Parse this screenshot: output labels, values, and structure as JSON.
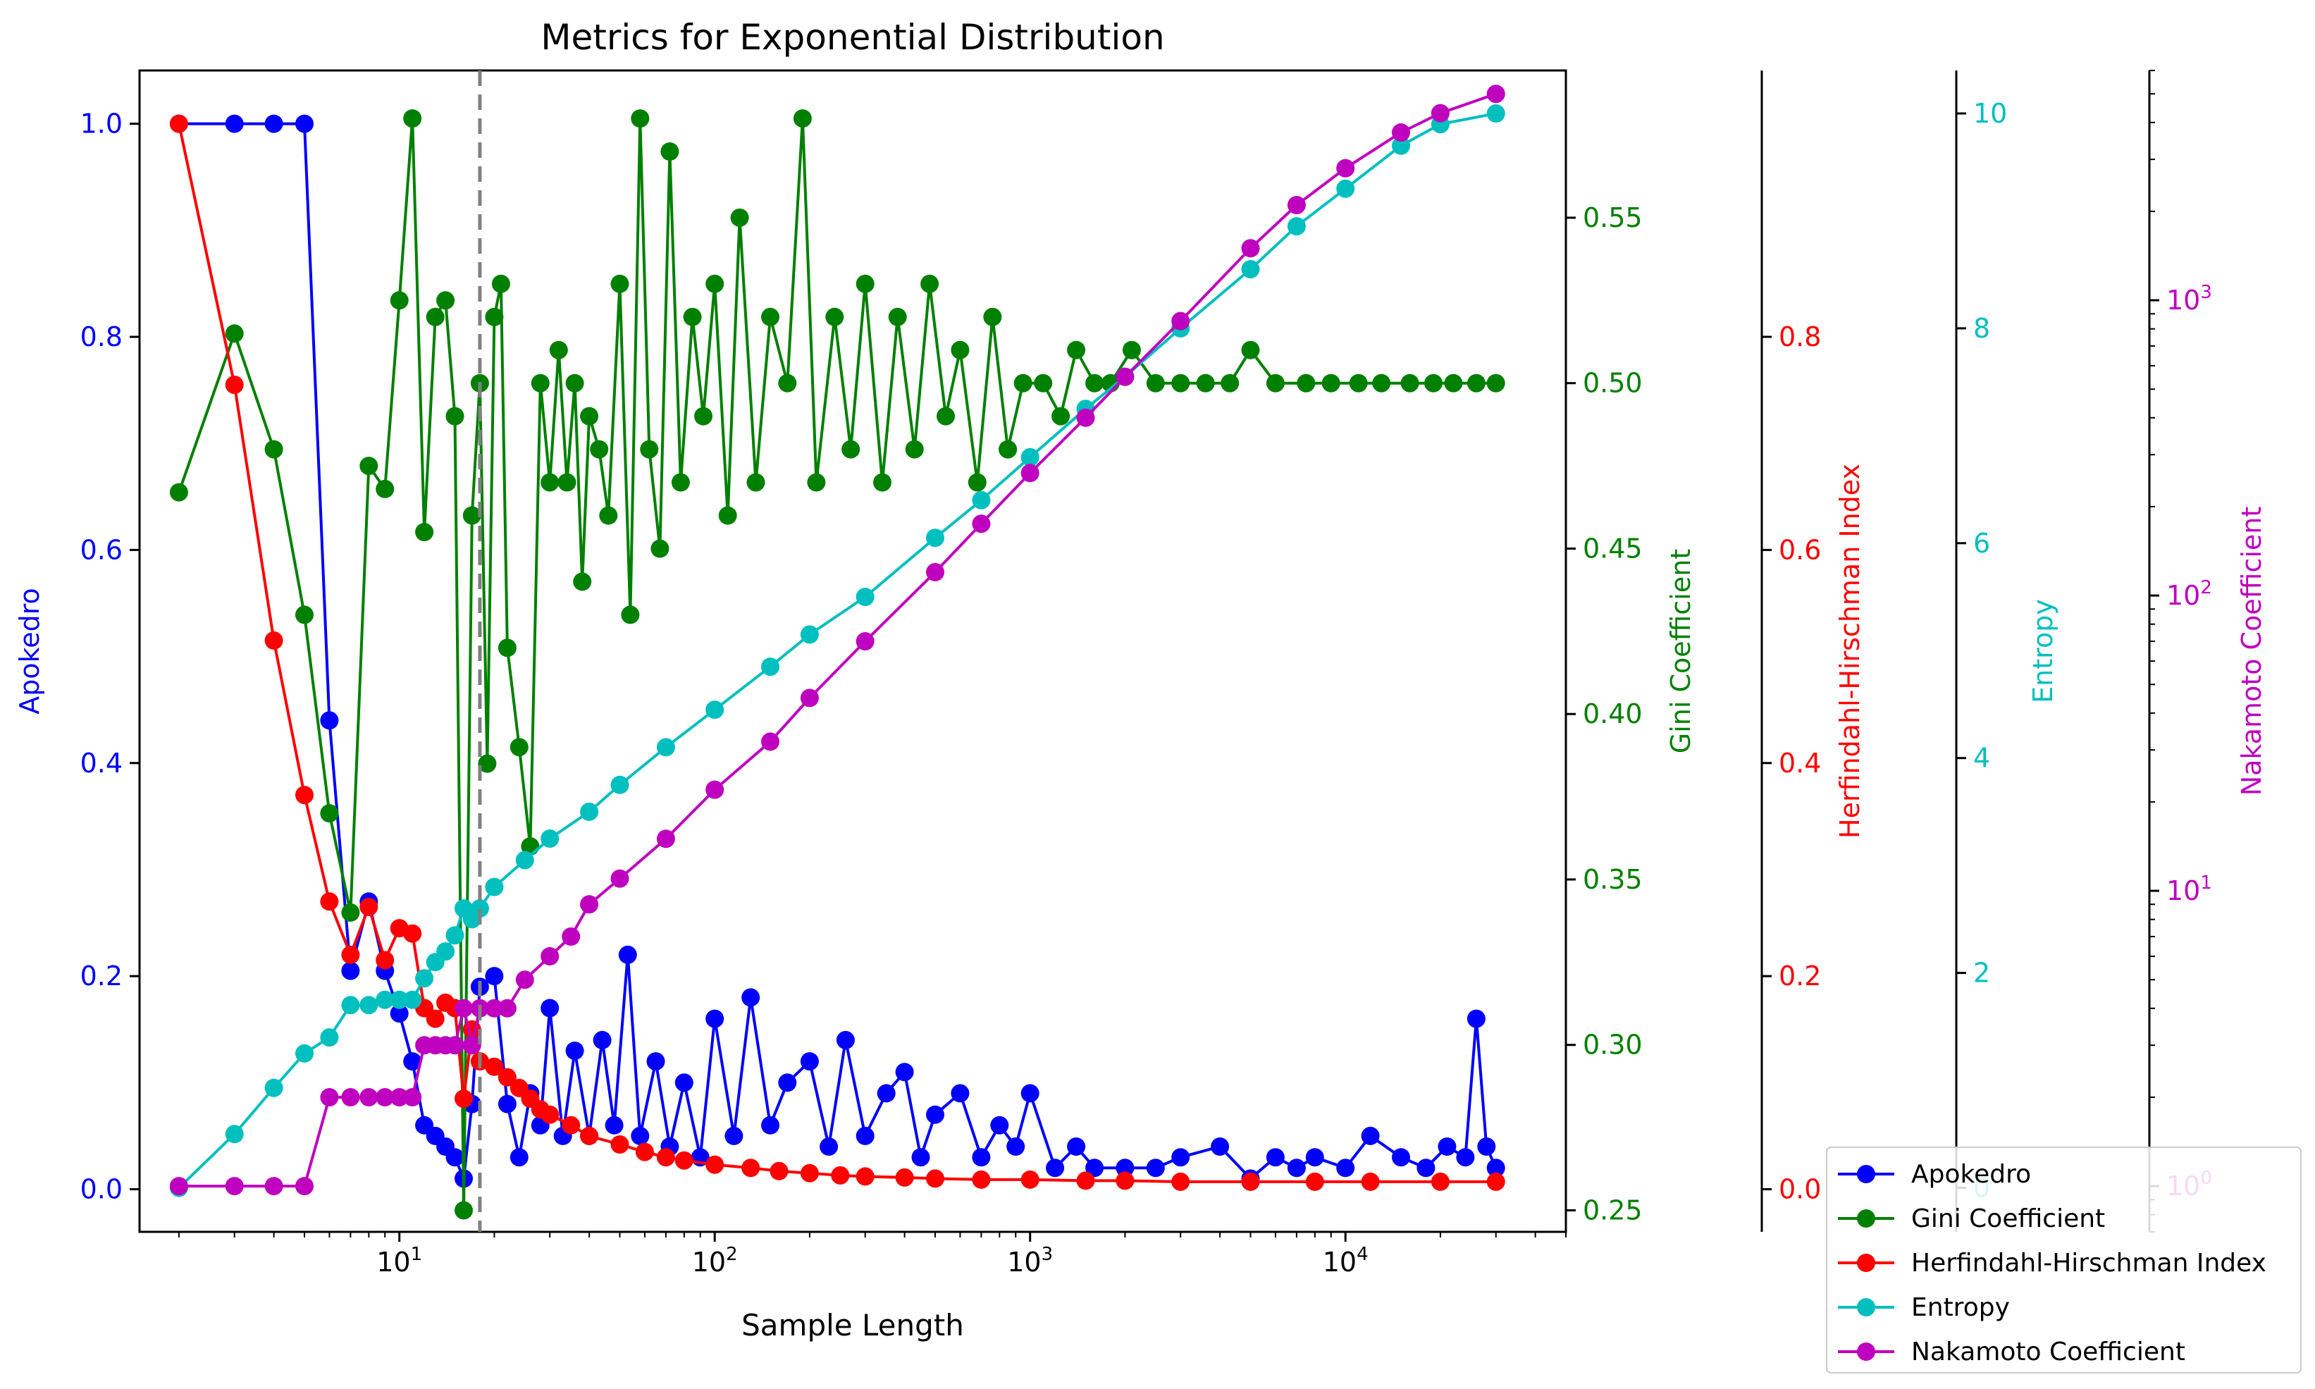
{
  "chart_data": {
    "type": "line",
    "title": "Metrics for Exponential Distribution",
    "xlabel": "Sample Length",
    "x_scale": "log",
    "xlim": [
      1.5,
      50000
    ],
    "x_ticks": [
      {
        "value": 10,
        "base": "10",
        "exp": "1"
      },
      {
        "value": 100,
        "base": "10",
        "exp": "2"
      },
      {
        "value": 1000,
        "base": "10",
        "exp": "3"
      },
      {
        "value": 10000,
        "base": "10",
        "exp": "4"
      }
    ],
    "vline": {
      "x": 18,
      "style": "dashed",
      "color": "#808080"
    },
    "axes": [
      {
        "id": "apokedro",
        "label": "Apokedro",
        "color": "#0000ff",
        "scale": "linear",
        "ylim": [
          -0.04,
          1.05
        ],
        "ticks": [
          "0.0",
          "0.2",
          "0.4",
          "0.6",
          "0.8",
          "1.0"
        ],
        "tick_values": [
          0,
          0.2,
          0.4,
          0.6,
          0.8,
          1.0
        ]
      },
      {
        "id": "gini",
        "label": "Gini Coefficient",
        "color": "#008000",
        "scale": "linear",
        "ylim": [
          0.2435,
          0.5945
        ],
        "ticks": [
          "0.25",
          "0.30",
          "0.35",
          "0.40",
          "0.45",
          "0.50",
          "0.55"
        ],
        "tick_values": [
          0.25,
          0.3,
          0.35,
          0.4,
          0.45,
          0.5,
          0.55
        ]
      },
      {
        "id": "hhi",
        "label": "Herfindahl-Hirschman Index",
        "color": "#ff0000",
        "scale": "linear",
        "ylim": [
          -0.04,
          1.05
        ],
        "ticks": [
          "0.0",
          "0.2",
          "0.4",
          "0.6",
          "0.8"
        ],
        "tick_values": [
          0,
          0.2,
          0.4,
          0.6,
          0.8
        ]
      },
      {
        "id": "entropy",
        "label": "Entropy",
        "color": "#00bfbf",
        "scale": "linear",
        "ylim": [
          -0.41,
          10.4
        ],
        "ticks": [
          "0",
          "2",
          "4",
          "6",
          "8",
          "10"
        ],
        "tick_values": [
          0,
          2,
          4,
          6,
          8,
          10
        ]
      },
      {
        "id": "nakamoto",
        "label": "Nakamoto Coefficient",
        "color": "#bf00bf",
        "scale": "log",
        "ylim": [
          0.7,
          6000
        ],
        "ticks": [
          {
            "value": 1,
            "base": "10",
            "exp": "0"
          },
          {
            "value": 10,
            "base": "10",
            "exp": "1"
          },
          {
            "value": 100,
            "base": "10",
            "exp": "2"
          },
          {
            "value": 1000,
            "base": "10",
            "exp": "3"
          }
        ]
      }
    ],
    "series": [
      {
        "name": "Apokedro",
        "color": "#0000ff",
        "axis": "apokedro",
        "x": [
          2,
          3,
          4,
          5,
          6,
          7,
          8,
          9,
          10,
          11,
          12,
          13,
          14,
          15,
          16,
          17,
          18,
          20,
          22,
          24,
          26,
          28,
          30,
          33,
          36,
          40,
          44,
          48,
          53,
          58,
          65,
          72,
          80,
          90,
          100,
          115,
          130,
          150,
          170,
          200,
          230,
          260,
          300,
          350,
          400,
          450,
          500,
          600,
          700,
          800,
          900,
          1000,
          1200,
          1400,
          1600,
          2000,
          2500,
          3000,
          4000,
          5000,
          6000,
          7000,
          8000,
          10000,
          12000,
          15000,
          18000,
          21000,
          24000,
          26000,
          28000,
          30000
        ],
        "y": [
          1.0,
          1.0,
          1.0,
          1.0,
          0.44,
          0.205,
          0.27,
          0.205,
          0.165,
          0.12,
          0.06,
          0.05,
          0.04,
          0.03,
          0.01,
          0.08,
          0.19,
          0.2,
          0.08,
          0.03,
          0.09,
          0.06,
          0.17,
          0.05,
          0.13,
          0.05,
          0.14,
          0.06,
          0.22,
          0.05,
          0.12,
          0.04,
          0.1,
          0.03,
          0.16,
          0.05,
          0.18,
          0.06,
          0.1,
          0.12,
          0.04,
          0.14,
          0.05,
          0.09,
          0.11,
          0.03,
          0.07,
          0.09,
          0.03,
          0.06,
          0.04,
          0.09,
          0.02,
          0.04,
          0.02,
          0.02,
          0.02,
          0.03,
          0.04,
          0.01,
          0.03,
          0.02,
          0.03,
          0.02,
          0.05,
          0.03,
          0.02,
          0.04,
          0.03,
          0.16,
          0.04,
          0.02
        ]
      },
      {
        "name": "Gini Coefficient",
        "color": "#008000",
        "axis": "gini",
        "x": [
          2,
          3,
          4,
          5,
          6,
          7,
          8,
          9,
          10,
          11,
          12,
          13,
          14,
          15,
          16,
          17,
          18,
          19,
          20,
          21,
          22,
          24,
          26,
          28,
          30,
          32,
          34,
          36,
          38,
          40,
          43,
          46,
          50,
          54,
          58,
          62,
          67,
          72,
          78,
          85,
          92,
          100,
          110,
          120,
          135,
          150,
          170,
          190,
          210,
          240,
          270,
          300,
          340,
          380,
          430,
          480,
          540,
          600,
          680,
          760,
          850,
          950,
          1100,
          1250,
          1400,
          1600,
          1800,
          2100,
          2500,
          3000,
          3600,
          4300,
          5000,
          6000,
          7500,
          9000,
          11000,
          13000,
          16000,
          19000,
          22000,
          26000,
          30000
        ],
        "y": [
          0.467,
          0.515,
          0.48,
          0.43,
          0.37,
          0.34,
          0.475,
          0.468,
          0.525,
          0.58,
          0.455,
          0.52,
          0.525,
          0.49,
          0.25,
          0.46,
          0.5,
          0.385,
          0.52,
          0.53,
          0.42,
          0.39,
          0.36,
          0.5,
          0.47,
          0.51,
          0.47,
          0.5,
          0.44,
          0.49,
          0.48,
          0.46,
          0.53,
          0.43,
          0.58,
          0.48,
          0.45,
          0.57,
          0.47,
          0.52,
          0.49,
          0.53,
          0.46,
          0.55,
          0.47,
          0.52,
          0.5,
          0.58,
          0.47,
          0.52,
          0.48,
          0.53,
          0.47,
          0.52,
          0.48,
          0.53,
          0.49,
          0.51,
          0.47,
          0.52,
          0.48,
          0.5,
          0.5,
          0.49,
          0.51,
          0.5,
          0.5,
          0.51,
          0.5,
          0.5,
          0.5,
          0.5,
          0.51,
          0.5,
          0.5,
          0.5,
          0.5,
          0.5,
          0.5,
          0.5,
          0.5,
          0.5,
          0.5
        ]
      },
      {
        "name": "Herfindahl-Hirschman Index",
        "color": "#ff0000",
        "axis": "hhi",
        "x": [
          2,
          3,
          4,
          5,
          6,
          7,
          8,
          9,
          10,
          11,
          12,
          13,
          14,
          15,
          16,
          17,
          18,
          20,
          22,
          24,
          26,
          28,
          30,
          35,
          40,
          50,
          60,
          70,
          80,
          100,
          130,
          160,
          200,
          250,
          300,
          400,
          500,
          700,
          1000,
          1500,
          2000,
          3000,
          5000,
          8000,
          12000,
          20000,
          30000
        ],
        "y": [
          1.0,
          0.755,
          0.515,
          0.37,
          0.27,
          0.22,
          0.265,
          0.215,
          0.245,
          0.24,
          0.17,
          0.16,
          0.175,
          0.17,
          0.085,
          0.15,
          0.12,
          0.115,
          0.105,
          0.095,
          0.085,
          0.075,
          0.07,
          0.06,
          0.05,
          0.042,
          0.035,
          0.03,
          0.027,
          0.023,
          0.02,
          0.017,
          0.015,
          0.013,
          0.012,
          0.011,
          0.01,
          0.009,
          0.009,
          0.008,
          0.008,
          0.007,
          0.007,
          0.007,
          0.007,
          0.007,
          0.007
        ]
      },
      {
        "name": "Entropy",
        "color": "#00bfbf",
        "axis": "entropy",
        "x": [
          2,
          3,
          4,
          5,
          6,
          7,
          8,
          9,
          10,
          11,
          12,
          13,
          14,
          15,
          16,
          17,
          18,
          20,
          25,
          30,
          40,
          50,
          70,
          100,
          150,
          200,
          300,
          500,
          700,
          1000,
          1500,
          2000,
          3000,
          5000,
          7000,
          10000,
          15000,
          20000,
          30000
        ],
        "y": [
          0.0,
          0.5,
          0.93,
          1.25,
          1.4,
          1.7,
          1.7,
          1.75,
          1.75,
          1.75,
          1.95,
          2.1,
          2.2,
          2.35,
          2.6,
          2.5,
          2.6,
          2.8,
          3.05,
          3.25,
          3.5,
          3.75,
          4.1,
          4.45,
          4.85,
          5.15,
          5.5,
          6.05,
          6.4,
          6.8,
          7.25,
          7.55,
          8.0,
          8.55,
          8.95,
          9.3,
          9.7,
          9.9,
          10.0
        ]
      },
      {
        "name": "Nakamoto Coefficient",
        "color": "#bf00bf",
        "axis": "nakamoto",
        "x": [
          2,
          3,
          4,
          5,
          6,
          7,
          8,
          9,
          10,
          11,
          12,
          13,
          14,
          15,
          16,
          17,
          18,
          20,
          22,
          25,
          30,
          35,
          40,
          50,
          70,
          100,
          150,
          200,
          300,
          500,
          700,
          1000,
          1500,
          2000,
          3000,
          5000,
          7000,
          10000,
          15000,
          20000,
          30000
        ],
        "y": [
          1,
          1,
          1,
          1,
          2,
          2,
          2,
          2,
          2,
          2,
          3,
          3,
          3,
          3,
          4,
          3,
          4,
          4,
          4,
          5,
          6,
          7,
          9,
          11,
          15,
          22,
          32,
          45,
          70,
          120,
          175,
          260,
          400,
          550,
          850,
          1500,
          2100,
          2800,
          3700,
          4300,
          5000
        ]
      }
    ],
    "legend": {
      "placement": "bottom-right",
      "entries": [
        "Apokedro",
        "Gini Coefficient",
        "Herfindahl-Hirschman Index",
        "Entropy",
        "Nakamoto Coefficient"
      ]
    }
  }
}
